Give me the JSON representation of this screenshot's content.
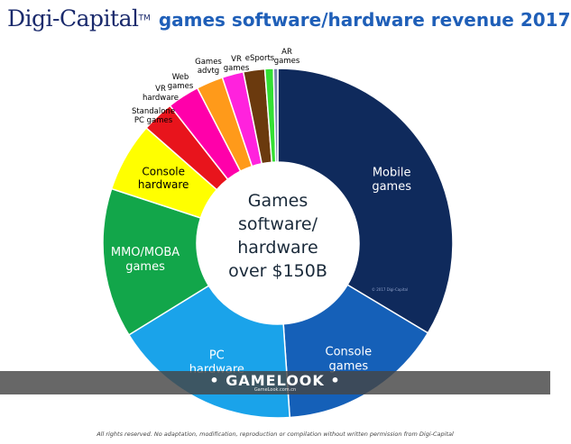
{
  "header": {
    "brand": "Digi-Capital",
    "trademark": "TM",
    "title": "games software/hardware revenue 2017"
  },
  "chart_data": {
    "type": "pie",
    "center_label": [
      "Games",
      "software/",
      "hardware",
      "over $150B"
    ],
    "watermark": "© 2017 Digi-Capital",
    "slices": [
      {
        "label": [
          "Mobile",
          "games"
        ],
        "value": 34.0,
        "color": "#0f2a5c",
        "text_color": "#ffffff"
      },
      {
        "label": [
          "Console",
          "games"
        ],
        "value": 15.5,
        "color": "#1560b8",
        "text_color": "#ffffff"
      },
      {
        "label": [
          "PC",
          "hardware"
        ],
        "value": 17.5,
        "color": "#1aa3ea",
        "text_color": "#ffffff"
      },
      {
        "label": [
          "MMO/MOBA",
          "games"
        ],
        "value": 14.0,
        "color": "#12a64a",
        "text_color": "#ffffff"
      },
      {
        "label": [
          "Console",
          "hardware"
        ],
        "value": 6.5,
        "color": "#ffff00",
        "text_color": "#000000"
      },
      {
        "label": [
          "Standalone",
          "PC games"
        ],
        "value": 3.0,
        "color": "#e8141c",
        "text_color": "#000000"
      },
      {
        "label": [
          "VR",
          "hardware"
        ],
        "value": 3.0,
        "color": "#ff00aa",
        "text_color": "#000000"
      },
      {
        "label": [
          "Web",
          "games"
        ],
        "value": 2.5,
        "color": "#ff9a1a",
        "text_color": "#000000"
      },
      {
        "label": [
          "Games",
          "advtg"
        ],
        "value": 2.0,
        "color": "#ff22dd",
        "text_color": "#000000"
      },
      {
        "label": [
          "VR",
          "games"
        ],
        "value": 2.0,
        "color": "#6b3a0e",
        "text_color": "#000000"
      },
      {
        "label": [
          "eSports"
        ],
        "value": 0.8,
        "color": "#33e033",
        "text_color": "#000000"
      },
      {
        "label": [
          "AR",
          "games"
        ],
        "value": 0.4,
        "color": "#7a86b0",
        "text_color": "#000000"
      }
    ]
  },
  "banner": {
    "text": "• GAMELOOK •",
    "subtext": "GameLook.com.cn"
  },
  "footer": {
    "text": "All rights reserved. No adaptation, modification, reproduction or compilation without written permission from Digi-Capital"
  }
}
